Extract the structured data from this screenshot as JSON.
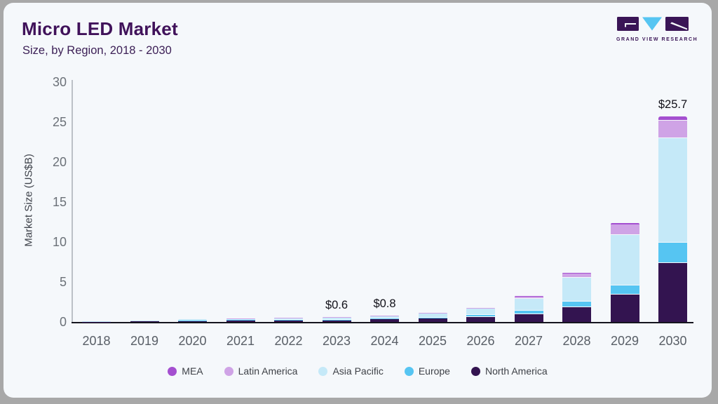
{
  "header": {
    "title": "Micro LED Market",
    "subtitle": "Size, by Region, 2018 - 2030"
  },
  "logo": {
    "text": "GRAND VIEW RESEARCH"
  },
  "chart_data": {
    "type": "bar",
    "stacked": true,
    "title": "Micro LED Market",
    "subtitle": "Size, by Region, 2018 - 2030",
    "xlabel": "",
    "ylabel": "Market Size (US$B)",
    "ylim": [
      0,
      30
    ],
    "yticks": [
      0,
      5,
      10,
      15,
      20,
      25,
      30
    ],
    "grid": false,
    "legend_position": "bottom",
    "categories": [
      "2018",
      "2019",
      "2020",
      "2021",
      "2022",
      "2023",
      "2024",
      "2025",
      "2026",
      "2027",
      "2028",
      "2029",
      "2030"
    ],
    "series": [
      {
        "name": "North America",
        "color": "#331450",
        "values": [
          0.03,
          0.06,
          0.14,
          0.18,
          0.22,
          0.25,
          0.33,
          0.45,
          0.62,
          0.95,
          1.85,
          3.4,
          7.4
        ]
      },
      {
        "name": "Europe",
        "color": "#56c5f2",
        "values": [
          0.01,
          0.02,
          0.03,
          0.04,
          0.05,
          0.05,
          0.07,
          0.1,
          0.22,
          0.42,
          0.7,
          1.2,
          2.5
        ]
      },
      {
        "name": "Asia Pacific",
        "color": "#c5e9f8",
        "values": [
          0.03,
          0.06,
          0.14,
          0.19,
          0.24,
          0.27,
          0.36,
          0.5,
          0.85,
          1.55,
          3.0,
          6.3,
          13.1
        ]
      },
      {
        "name": "Latin America",
        "color": "#cfa3e6",
        "values": [
          0.01,
          0.01,
          0.02,
          0.03,
          0.04,
          0.03,
          0.04,
          0.06,
          0.08,
          0.25,
          0.5,
          1.3,
          2.2
        ]
      },
      {
        "name": "MEA",
        "color": "#a44fd0",
        "values": [
          0.0,
          0.0,
          0.0,
          0.0,
          0.0,
          0.0,
          0.0,
          0.01,
          0.02,
          0.05,
          0.08,
          0.15,
          0.5
        ]
      }
    ],
    "legend": [
      {
        "label": "MEA",
        "color": "#a44fd0"
      },
      {
        "label": "Latin America",
        "color": "#cfa3e6"
      },
      {
        "label": "Asia Pacific",
        "color": "#c5e9f8"
      },
      {
        "label": "Europe",
        "color": "#56c5f2"
      },
      {
        "label": "North America",
        "color": "#331450"
      }
    ],
    "annotations": [
      {
        "category": "2023",
        "text": "$0.6"
      },
      {
        "category": "2024",
        "text": "$0.8"
      },
      {
        "category": "2030",
        "text": "$25.7"
      }
    ]
  }
}
